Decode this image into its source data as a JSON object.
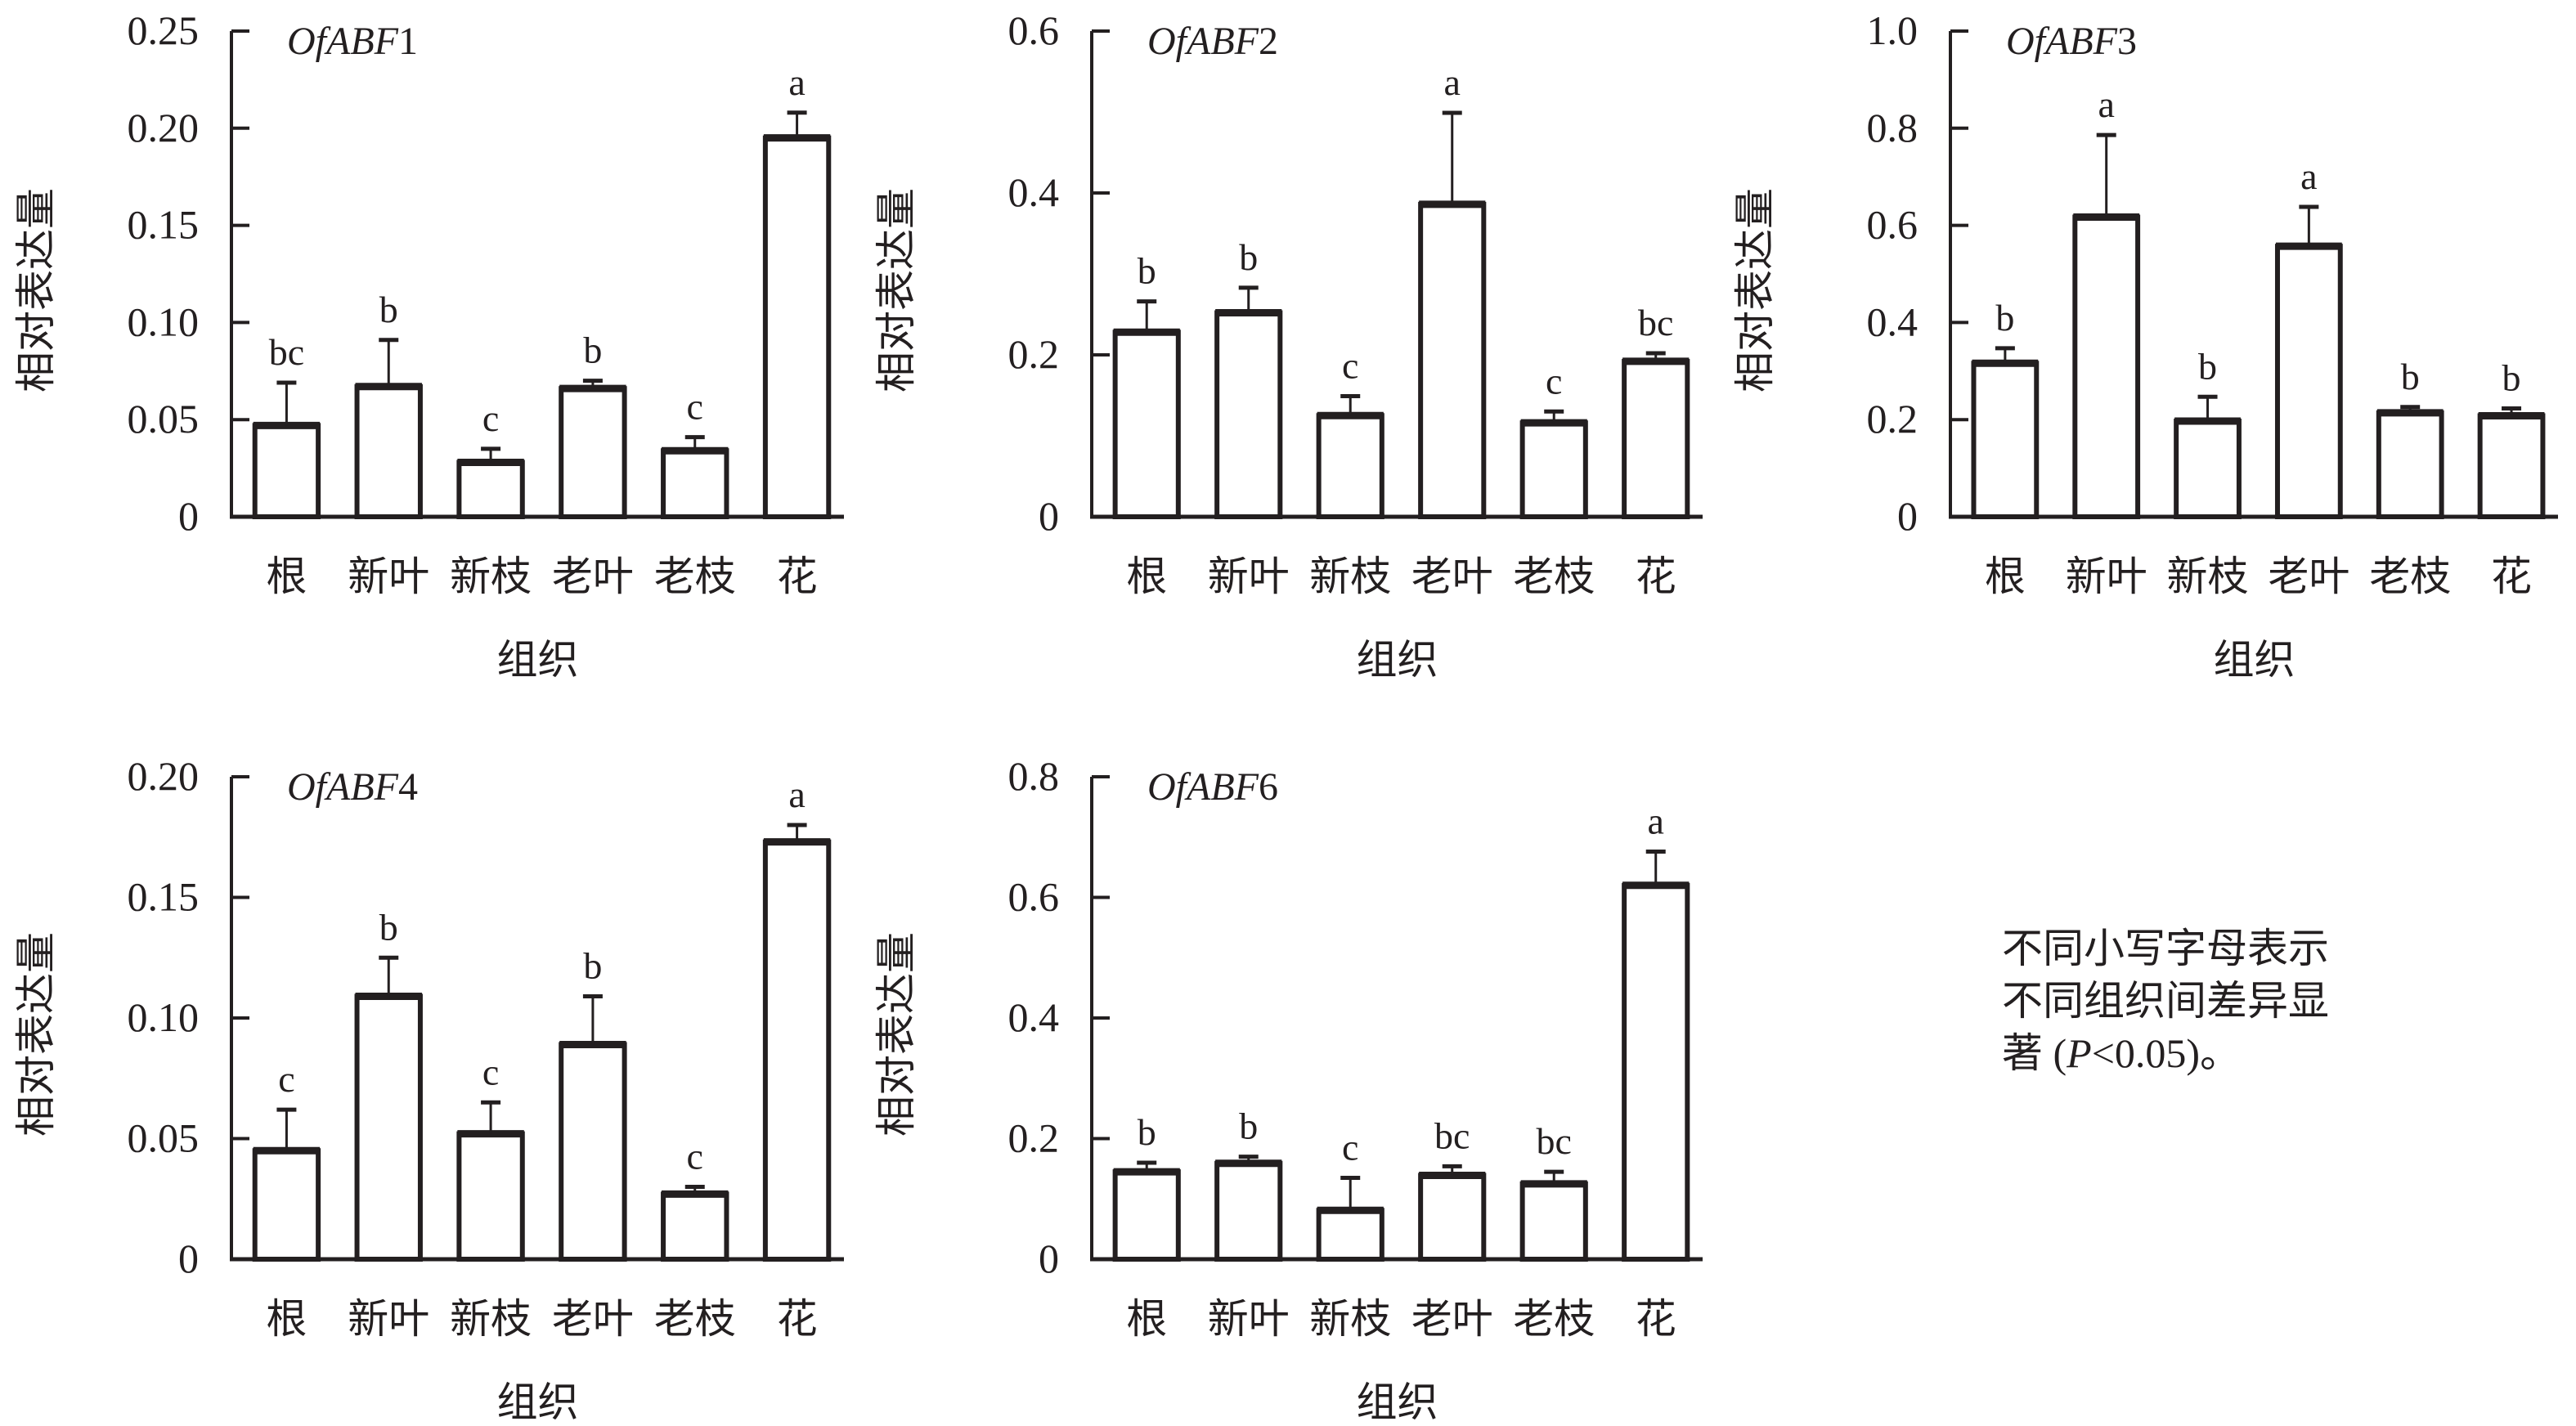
{
  "chart_data": [
    {
      "type": "bar",
      "title_italic": "OfABF",
      "title_suffix": "1",
      "xlabel": "组织",
      "ylabel": "相对表达量",
      "categories": [
        "根",
        "新叶",
        "新枝",
        "老叶",
        "老枝",
        "花"
      ],
      "values": [
        0.047,
        0.067,
        0.028,
        0.066,
        0.034,
        0.195
      ],
      "error": [
        0.022,
        0.024,
        0.007,
        0.004,
        0.007,
        0.013
      ],
      "significance": [
        "bc",
        "b",
        "c",
        "b",
        "c",
        "a"
      ],
      "ylim": [
        0,
        0.25
      ],
      "yticks": [
        0,
        0.05,
        0.1,
        0.15,
        0.2,
        0.25
      ],
      "ytick_labels": [
        "0",
        "0.05",
        "0.10",
        "0.15",
        "0.20",
        "0.25"
      ],
      "grid": false
    },
    {
      "type": "bar",
      "title_italic": "OfABF",
      "title_suffix": "2",
      "xlabel": "组织",
      "ylabel": "相对表达量",
      "categories": [
        "根",
        "新叶",
        "新枝",
        "老叶",
        "老枝",
        "花"
      ],
      "values": [
        0.228,
        0.252,
        0.125,
        0.386,
        0.116,
        0.192
      ],
      "error": [
        0.038,
        0.031,
        0.024,
        0.113,
        0.014,
        0.01
      ],
      "significance": [
        "b",
        "b",
        "c",
        "a",
        "c",
        "bc"
      ],
      "ylim": [
        0,
        0.6
      ],
      "yticks": [
        0,
        0.2,
        0.4,
        0.6
      ],
      "ytick_labels": [
        "0",
        "0.2",
        "0.4",
        "0.6"
      ],
      "grid": false
    },
    {
      "type": "bar",
      "title_italic": "OfABF",
      "title_suffix": "3",
      "xlabel": "组织",
      "ylabel": "相对表达量",
      "categories": [
        "根",
        "新叶",
        "新枝",
        "老叶",
        "老枝",
        "花"
      ],
      "values": [
        0.316,
        0.617,
        0.197,
        0.557,
        0.214,
        0.208
      ],
      "error": [
        0.031,
        0.169,
        0.05,
        0.081,
        0.012,
        0.015
      ],
      "significance": [
        "b",
        "a",
        "b",
        "a",
        "b",
        "b"
      ],
      "ylim": [
        0,
        1.0
      ],
      "yticks": [
        0,
        0.2,
        0.4,
        0.6,
        0.8,
        1.0
      ],
      "ytick_labels": [
        "0",
        "0.2",
        "0.4",
        "0.6",
        "0.8",
        "1.0"
      ],
      "grid": false
    },
    {
      "type": "bar",
      "title_italic": "OfABF",
      "title_suffix": "4",
      "xlabel": "组织",
      "ylabel": "相对表达量",
      "categories": [
        "根",
        "新叶",
        "新枝",
        "老叶",
        "老枝",
        "花"
      ],
      "values": [
        0.045,
        0.109,
        0.052,
        0.089,
        0.027,
        0.173
      ],
      "error": [
        0.017,
        0.016,
        0.013,
        0.02,
        0.003,
        0.007
      ],
      "significance": [
        "c",
        "b",
        "c",
        "b",
        "c",
        "a"
      ],
      "ylim": [
        0,
        0.2
      ],
      "yticks": [
        0,
        0.05,
        0.1,
        0.15,
        0.2
      ],
      "ytick_labels": [
        "0",
        "0.05",
        "0.10",
        "0.15",
        "0.20"
      ],
      "grid": false
    },
    {
      "type": "bar",
      "title_italic": "OfABF",
      "title_suffix": "6",
      "xlabel": "组织",
      "ylabel": "相对表达量",
      "categories": [
        "根",
        "新叶",
        "新枝",
        "老叶",
        "老枝",
        "花"
      ],
      "values": [
        0.145,
        0.159,
        0.081,
        0.139,
        0.125,
        0.62
      ],
      "error": [
        0.015,
        0.011,
        0.054,
        0.015,
        0.02,
        0.056
      ],
      "significance": [
        "b",
        "b",
        "c",
        "bc",
        "bc",
        "a"
      ],
      "ylim": [
        0,
        0.8
      ],
      "yticks": [
        0,
        0.2,
        0.4,
        0.6,
        0.8
      ],
      "ytick_labels": [
        "0",
        "0.2",
        "0.4",
        "0.6",
        "0.8"
      ],
      "grid": false
    }
  ],
  "note": {
    "line1": "不同小写字母表示",
    "line2": "不同组织间差异显",
    "line3_prefix": "著 (",
    "line3_p": "P",
    "line3_suffix": "<0.05)。"
  },
  "colors": {
    "ink": "#231f20",
    "bar_fill": "#ffffff"
  }
}
